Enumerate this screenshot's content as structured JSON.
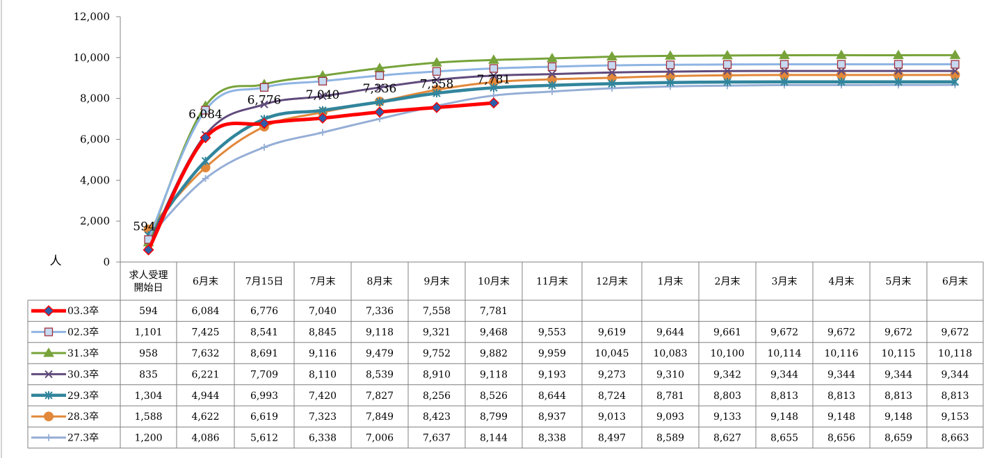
{
  "chart_data": {
    "type": "line",
    "ylabel": "人",
    "ylim": [
      0,
      12000
    ],
    "yticks": [
      0,
      2000,
      4000,
      6000,
      8000,
      10000,
      12000
    ],
    "ytick_labels": [
      "0",
      "2,000",
      "4,000",
      "6,000",
      "8,000",
      "10,000",
      "12,000"
    ],
    "categories": [
      "求人受理\n開始日",
      "6月末",
      "7月15日",
      "7月末",
      "8月末",
      "9月末",
      "10月末",
      "11月末",
      "12月末",
      "1月末",
      "2月末",
      "3月末",
      "4月末",
      "5月末",
      "6月末"
    ],
    "legend": "table-left",
    "grid": false,
    "series": [
      {
        "name": "03.3卒",
        "color": "#ff0000",
        "marker": "diamond",
        "values": [
          594,
          6084,
          6776,
          7040,
          7336,
          7558,
          7781,
          null,
          null,
          null,
          null,
          null,
          null,
          null,
          null
        ],
        "labels": [
          "594",
          "6,084",
          "6,776",
          "7,040",
          "7,336",
          "7,558",
          "7,781",
          "",
          "",
          "",
          "",
          "",
          "",
          "",
          ""
        ]
      },
      {
        "name": "02.3卒",
        "color": "#8eb4e3",
        "marker": "square",
        "values": [
          1101,
          7425,
          8541,
          8845,
          9118,
          9321,
          9468,
          9553,
          9619,
          9644,
          9661,
          9672,
          9672,
          9672,
          9672
        ],
        "labels": [
          "1,101",
          "7,425",
          "8,541",
          "8,845",
          "9,118",
          "9,321",
          "9,468",
          "9,553",
          "9,619",
          "9,644",
          "9,661",
          "9,672",
          "9,672",
          "9,672",
          "9,672"
        ]
      },
      {
        "name": "31.3卒",
        "color": "#77a33a",
        "marker": "triangle",
        "values": [
          958,
          7632,
          8691,
          9116,
          9479,
          9752,
          9882,
          9959,
          10045,
          10083,
          10100,
          10114,
          10116,
          10115,
          10118
        ],
        "labels": [
          "958",
          "7,632",
          "8,691",
          "9,116",
          "9,479",
          "9,752",
          "9,882",
          "9,959",
          "10,045",
          "10,083",
          "10,100",
          "10,114",
          "10,116",
          "10,115",
          "10,118"
        ]
      },
      {
        "name": "30.3卒",
        "color": "#604a7b",
        "marker": "x",
        "values": [
          835,
          6221,
          7709,
          8110,
          8539,
          8910,
          9118,
          9193,
          9273,
          9310,
          9342,
          9344,
          9344,
          9344,
          9344
        ],
        "labels": [
          "835",
          "6,221",
          "7,709",
          "8,110",
          "8,539",
          "8,910",
          "9,118",
          "9,193",
          "9,273",
          "9,310",
          "9,342",
          "9,344",
          "9,344",
          "9,344",
          "9,344"
        ]
      },
      {
        "name": "29.3卒",
        "color": "#31859c",
        "marker": "star",
        "values": [
          1304,
          4944,
          6993,
          7420,
          7827,
          8256,
          8526,
          8644,
          8724,
          8781,
          8803,
          8813,
          8813,
          8813,
          8813
        ],
        "labels": [
          "1,304",
          "4,944",
          "6,993",
          "7,420",
          "7,827",
          "8,256",
          "8,526",
          "8,644",
          "8,724",
          "8,781",
          "8,803",
          "8,813",
          "8,813",
          "8,813",
          "8,813"
        ]
      },
      {
        "name": "28.3卒",
        "color": "#e2883a",
        "marker": "circle",
        "values": [
          1588,
          4622,
          6619,
          7323,
          7849,
          8423,
          8799,
          8937,
          9013,
          9093,
          9133,
          9148,
          9148,
          9148,
          9153
        ],
        "labels": [
          "1,588",
          "4,622",
          "6,619",
          "7,323",
          "7,849",
          "8,423",
          "8,799",
          "8,937",
          "9,013",
          "9,093",
          "9,133",
          "9,148",
          "9,148",
          "9,148",
          "9,153"
        ]
      },
      {
        "name": "27.3卒",
        "color": "#95aed6",
        "marker": "plus",
        "values": [
          1200,
          4086,
          5612,
          6338,
          7006,
          7637,
          8144,
          8338,
          8497,
          8589,
          8627,
          8655,
          8656,
          8659,
          8663
        ],
        "labels": [
          "1,200",
          "4,086",
          "5,612",
          "6,338",
          "7,006",
          "7,637",
          "8,144",
          "8,338",
          "8,497",
          "8,589",
          "8,627",
          "8,655",
          "8,656",
          "8,659",
          "8,663"
        ]
      }
    ]
  }
}
